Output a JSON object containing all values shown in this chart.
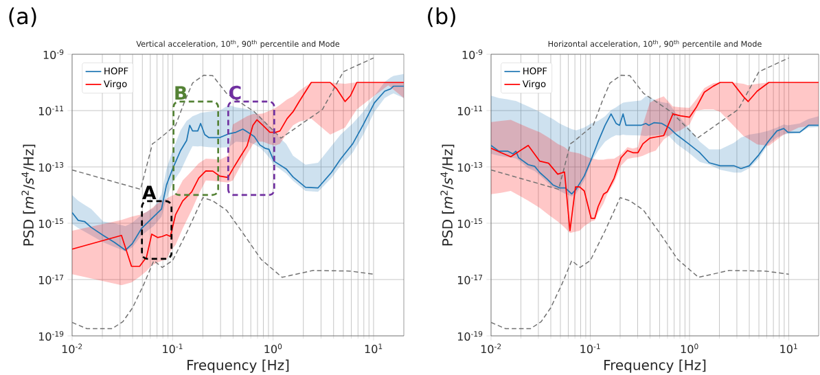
{
  "chart_data": [
    {
      "type": "line",
      "title": "Vertical acceleration, 10$^{th}$, 90$^{th}$ percentile and Mode",
      "xlabel": "Frequency [Hz]",
      "ylabel": "PSD [*m*$^{2}$/*s*$^{4}$/Hz]",
      "log": "xy",
      "grid": true,
      "legend": "top left",
      "xlim": [
        0.01,
        20
      ],
      "ylim": [
        1e-19,
        1e-09
      ],
      "xticks": [
        {
          "value": 0.01,
          "label": "10$^{-2}$"
        },
        {
          "value": 0.1,
          "label": "10$^{-1}$"
        },
        {
          "value": 1,
          "label": "10$^{0}$"
        },
        {
          "value": 10,
          "label": "10$^{1}$"
        }
      ],
      "yticks": [
        {
          "value": 1e-19,
          "label": "10$^{-19}$"
        },
        {
          "value": 1e-17,
          "label": "10$^{-17}$"
        },
        {
          "value": 1e-15,
          "label": "10$^{-15}$"
        },
        {
          "value": 1e-13,
          "label": "10$^{-13}$"
        },
        {
          "value": 1e-11,
          "label": "10$^{-11}$"
        },
        {
          "value": 1e-09,
          "label": "10$^{-9}$"
        }
      ],
      "annotations": [
        "(a)",
        "A",
        "B",
        "C"
      ],
      "series": [
        {
          "name": "HOPF",
          "color": "#1f77b4",
          "x": [
            0.01,
            0.0115,
            0.0133,
            0.0155,
            0.0204,
            0.0263,
            0.0339,
            0.0398,
            0.049,
            0.0646,
            0.0776,
            0.087,
            0.1,
            0.12,
            0.138,
            0.148,
            0.158,
            0.178,
            0.19,
            0.209,
            0.229,
            0.295,
            0.363,
            0.427,
            0.5,
            0.56,
            0.65,
            0.74,
            0.83,
            0.91,
            1.02,
            1.35,
            1.58,
            2.1,
            2.8,
            3.8,
            4.7,
            6.2,
            7.9,
            10.2,
            12.9,
            14.8,
            15.8,
            20
          ],
          "values": [
            2.4e-15,
            1.26e-15,
            1.15e-15,
            7.1e-16,
            3.7e-16,
            2.1e-16,
            1.1e-16,
            1.9e-16,
            6.5e-16,
            1.7e-15,
            3.2e-15,
            2.3e-14,
            8.5e-14,
            3.8e-13,
            8.7e-13,
            3e-12,
            1.9e-12,
            1.9e-12,
            3.5e-12,
            1.4e-12,
            1.1e-12,
            1.1e-12,
            1.5e-12,
            1.7e-12,
            2.2e-12,
            1.7e-12,
            1.2e-12,
            6e-13,
            4.6e-13,
            4.2e-13,
            1.6e-13,
            8.5e-14,
            4.4e-14,
            1.9e-14,
            1.8e-14,
            6.3e-14,
            1.9e-13,
            6.6e-13,
            3.2e-12,
            1.9e-11,
            4.9e-11,
            5.9e-11,
            7.4e-11,
            7.4e-11
          ],
          "lower": [
            9.5e-16,
            6.8e-16,
            5e-16,
            3.7e-16,
            2.1e-16,
            1.45e-16,
            1e-16,
            1.4e-16,
            3.7e-16,
            7.9e-16,
            1.7e-15,
            7.4e-15,
            2.8e-14,
            7.1e-14,
            2.1e-13,
            3.5e-13,
            5.5e-13,
            5.3e-13,
            5.5e-13,
            5.2e-13,
            5e-13,
            4.8e-13,
            5e-13,
            7.9e-13,
            7.6e-13,
            7.9e-13,
            6.3e-13,
            4.8e-13,
            3.2e-13,
            2.2e-13,
            1.2e-13,
            5.8e-14,
            3.2e-14,
            1.4e-14,
            1.3e-14,
            4e-14,
            1.1e-13,
            3.2e-13,
            1.4e-12,
            9.1e-12,
            2.8e-11,
            3.7e-11,
            4.1e-11,
            2.8e-11
          ],
          "upper": [
            1e-14,
            6.3e-15,
            4.5e-15,
            3.2e-15,
            1.15e-15,
            1e-15,
            7.9e-16,
            1.05e-15,
            2e-15,
            3.5e-15,
            1.07e-14,
            8.5e-14,
            3.8e-13,
            2e-12,
            4.3e-12,
            5.2e-12,
            6.3e-12,
            7.4e-12,
            8.3e-12,
            8.7e-12,
            9.1e-12,
            1e-11,
            1.6e-11,
            1.3e-11,
            1.2e-11,
            1.1e-11,
            8.9e-12,
            6.6e-12,
            4e-12,
            2.8e-12,
            1.7e-12,
            6.6e-13,
            2.5e-13,
            1.2e-13,
            1.4e-13,
            5.5e-13,
            1.4e-12,
            3.5e-12,
            9.1e-12,
            3.4e-11,
            1.05e-10,
            1.5e-10,
            1.7e-10,
            2e-10
          ]
        },
        {
          "name": "Virgo",
          "color": "#ff0000",
          "x": [
            0.01,
            0.031,
            0.039,
            0.047,
            0.055,
            0.062,
            0.071,
            0.079,
            0.087,
            0.095,
            0.107,
            0.126,
            0.155,
            0.182,
            0.214,
            0.251,
            0.295,
            0.355,
            0.398,
            0.468,
            0.55,
            0.63,
            0.69,
            0.79,
            0.93,
            1.06,
            1.17,
            1.38,
            1.58,
            1.82,
            2.4,
            3.7,
            4.3,
            5.2,
            5.9,
            6.8,
            10,
            14,
            20
          ],
          "values": [
            1.2e-16,
            3.7e-16,
            2.95e-17,
            2.95e-17,
            6.3e-17,
            4.1e-16,
            3.1e-16,
            3.4e-16,
            3.9e-16,
            3.4e-16,
            2e-15,
            6.2e-15,
            1.3e-14,
            4e-14,
            7.2e-14,
            7.1e-14,
            4.7e-14,
            4.2e-14,
            8.5e-14,
            2.2e-13,
            5.5e-13,
            3e-12,
            4.7e-12,
            3e-12,
            1.7e-12,
            1.7e-12,
            1.9e-12,
            5.2e-12,
            9.1e-12,
            2.1e-11,
            1e-10,
            1e-10,
            5.9e-11,
            2.1e-11,
            3.4e-11,
            1e-10,
            1e-10,
            1e-10,
            1e-10
          ],
          "lower": [
            1.55e-17,
            6.3e-18,
            7.9e-18,
            1.26e-17,
            2e-17,
            3.2e-17,
            4e-17,
            4.7e-17,
            5.2e-17,
            1e-16,
            1.7e-16,
            6.5e-16,
            2.9e-15,
            1.07e-14,
            3.3e-14,
            3.2e-14,
            3e-14,
            2.8e-14,
            3.3e-14,
            1e-13,
            2.8e-13,
            6.3e-13,
            7.9e-13,
            7.9e-13,
            6.3e-13,
            5.8e-13,
            6.6e-13,
            1.6e-12,
            3e-12,
            4e-12,
            5.2e-12,
            1.4e-12,
            1.8e-12,
            2.5e-12,
            5e-12,
            1.1e-11,
            3.2e-11,
            7.9e-11,
            2.8e-11
          ],
          "upper": [
            5.4e-16,
            1.3e-15,
            1.7e-15,
            2e-15,
            2.5e-15,
            3.4e-15,
            5e-15,
            6.3e-15,
            7.4e-15,
            8.9e-15,
            1.07e-14,
            3.3e-14,
            7.1e-14,
            1.35e-13,
            1.95e-13,
            1.9e-13,
            1.8e-13,
            2.5e-13,
            3.2e-12,
            4.5e-12,
            6.3e-12,
            7.6e-12,
            7.6e-12,
            7.9e-12,
            1e-11,
            1.26e-11,
            1.6e-11,
            2.5e-11,
            3.2e-11,
            5e-11,
            1e-10,
            1e-10,
            9.5e-11,
            8.9e-11,
            9.5e-11,
            1e-10,
            9.7e-11,
            1e-10,
            1e-10
          ]
        },
        {
          "color": "#707070",
          "line_style": "dashed",
          "x": [
            0.01,
            0.048,
            0.063,
            0.068,
            0.107,
            0.133,
            0.158,
            0.204,
            0.25,
            0.344,
            0.65,
            1.2,
            3.1,
            5,
            10
          ],
          "values": [
            7.8e-14,
            1.6e-14,
            6.6e-13,
            7.9e-13,
            3e-12,
            2.3e-11,
            9.5e-11,
            1.8e-10,
            1.75e-10,
            4.1e-11,
            9.1e-12,
            1.05e-12,
            1.1e-11,
            2.4e-10,
            7.4e-10
          ]
        },
        {
          "color": "#707070",
          "line_style": "dashed",
          "x": [
            0.01,
            0.014,
            0.025,
            0.032,
            0.04,
            0.052,
            0.065,
            0.079,
            0.1,
            0.141,
            0.2,
            0.25,
            0.344,
            0.52,
            0.76,
            1.23,
            2.5,
            5.8,
            10
          ],
          "values": [
            3e-19,
            1.8e-19,
            1.8e-19,
            3.2e-19,
            1e-18,
            7.1e-18,
            4.7e-17,
            2.7e-17,
            4.7e-17,
            5.4e-16,
            8.1e-15,
            6.3e-15,
            2.9e-15,
            3.7e-16,
            5.2e-17,
            1.2e-17,
            2.1e-17,
            2e-17,
            1.55e-17
          ]
        }
      ]
    },
    {
      "type": "line",
      "title": "Horizontal acceleration, 10$^{th}$, 90$^{th}$ percentile and Mode",
      "xlabel": "Frequency [Hz]",
      "ylabel": "PSD [*m*$^{2}$/*s*$^{4}$/Hz]",
      "log": "xy",
      "grid": true,
      "legend": "top left",
      "xlim": [
        0.01,
        20
      ],
      "ylim": [
        1e-19,
        1e-09
      ],
      "xticks": [
        {
          "value": 0.01,
          "label": "10$^{-2}$"
        },
        {
          "value": 0.1,
          "label": "10$^{-1}$"
        },
        {
          "value": 1,
          "label": "10$^{0}$"
        },
        {
          "value": 10,
          "label": "10$^{1}$"
        }
      ],
      "yticks": [
        {
          "value": 1e-19,
          "label": "10$^{-19}$"
        },
        {
          "value": 1e-17,
          "label": "10$^{-17}$"
        },
        {
          "value": 1e-15,
          "label": "10$^{-15}$"
        },
        {
          "value": 1e-13,
          "label": "10$^{-13}$"
        },
        {
          "value": 1e-11,
          "label": "10$^{-11}$"
        },
        {
          "value": 1e-09,
          "label": "10$^{-9}$"
        }
      ],
      "annotations": [
        "(b)"
      ],
      "series": [
        {
          "name": "HOPF",
          "color": "#1f77b4",
          "x": [
            0.01,
            0.012,
            0.0148,
            0.0166,
            0.0178,
            0.019,
            0.0237,
            0.0275,
            0.031,
            0.037,
            0.042,
            0.049,
            0.056,
            0.065,
            0.072,
            0.087,
            0.102,
            0.12,
            0.141,
            0.162,
            0.182,
            0.197,
            0.214,
            0.229,
            0.324,
            0.363,
            0.389,
            0.437,
            0.525,
            0.62,
            0.74,
            0.98,
            1.27,
            1.58,
            2.04,
            2.8,
            3.3,
            4,
            5,
            6.2,
            7.6,
            8.9,
            9.8,
            12.9,
            15.8,
            20
          ],
          "values": [
            5.8e-13,
            3.6e-13,
            3.6e-13,
            2.9e-13,
            3.6e-13,
            2.1e-13,
            1.2e-13,
            1.05e-13,
            6.3e-14,
            3.6e-14,
            2.3e-14,
            1.8e-14,
            1.8e-14,
            1.1e-14,
            1.6e-14,
            4.8e-14,
            1.8e-13,
            7.9e-13,
            3e-12,
            7.6e-12,
            3.5e-12,
            3e-12,
            7.6e-12,
            3e-12,
            3e-12,
            3.5e-12,
            3e-12,
            3.7e-12,
            3.5e-12,
            2.5e-12,
            1.4e-12,
            6.6e-13,
            3.2e-13,
            1.4e-13,
            1.1e-13,
            1.1e-13,
            8.7e-14,
            1.1e-13,
            2.7e-13,
            7.9e-13,
            1.9e-12,
            2.3e-12,
            1.7e-12,
            1.7e-12,
            3e-12,
            3e-12
          ],
          "lower": [
            2.9e-13,
            2.5e-13,
            2.2e-13,
            2.1e-13,
            2e-13,
            1.7e-13,
            8.9e-14,
            7.1e-14,
            5e-14,
            2.8e-14,
            1.8e-14,
            1.4e-14,
            1.1e-14,
            8.9e-15,
            1.1e-14,
            3.3e-14,
            1.5e-13,
            3.8e-13,
            7.9e-13,
            1.1e-12,
            1.35e-12,
            1.3e-12,
            1.4e-12,
            1.35e-12,
            1.3e-12,
            1.25e-12,
            1.3e-12,
            1.3e-12,
            1.4e-12,
            1.26e-12,
            6.6e-13,
            3.2e-13,
            1.5e-13,
            1.2e-13,
            7.9e-14,
            6.3e-14,
            6.3e-14,
            8.9e-14,
            2e-13,
            6.3e-13,
            1.1e-12,
            1.4e-12,
            1.5e-12,
            1.6e-12,
            2.5e-12,
            2.6e-12
          ],
          "upper": [
            3.4e-11,
            2.8e-11,
            2.5e-11,
            2.3e-11,
            2.2e-11,
            2e-11,
            1.4e-11,
            1.1e-11,
            8.9e-12,
            6.3e-12,
            5e-12,
            3.5e-12,
            2.8e-12,
            2.2e-12,
            2e-12,
            2.5e-12,
            3.5e-12,
            4.3e-12,
            6.3e-12,
            1.05e-11,
            1.3e-11,
            1.6e-11,
            1.9e-11,
            2e-11,
            2.3e-11,
            3.2e-11,
            3.2e-11,
            2.5e-11,
            2e-11,
            1.8e-11,
            7.6e-12,
            2.5e-12,
            7.9e-13,
            4.2e-13,
            4.2e-13,
            7.1e-13,
            1.1e-12,
            1.4e-12,
            1.6e-12,
            1.9e-12,
            2.5e-12,
            3.2e-12,
            3e-12,
            3.5e-12,
            5e-12,
            6.3e-12
          ]
        },
        {
          "name": "Virgo",
          "color": "#ff0000",
          "x": [
            0.01,
            0.0126,
            0.0158,
            0.0237,
            0.031,
            0.038,
            0.047,
            0.055,
            0.0624,
            0.071,
            0.078,
            0.087,
            0.102,
            0.111,
            0.12,
            0.136,
            0.148,
            0.174,
            0.204,
            0.237,
            0.269,
            0.302,
            0.339,
            0.398,
            0.457,
            0.55,
            0.62,
            0.68,
            0.81,
            1.0,
            1.17,
            1.41,
            1.74,
            2.04,
            2.7,
            3.5,
            3.9,
            4.8,
            6.3,
            8.9,
            12.6,
            20
          ],
          "values": [
            4.6e-13,
            3.2e-13,
            2.3e-13,
            5.8e-13,
            1.6e-13,
            1.35e-13,
            5.5e-14,
            6.6e-14,
            5.4e-16,
            1.95e-14,
            1.95e-14,
            1.4e-14,
            1.5e-15,
            1.5e-15,
            3.9e-15,
            1.07e-14,
            1.3e-14,
            4e-14,
            2.1e-13,
            3.8e-13,
            3.2e-13,
            3.2e-13,
            6.6e-13,
            1.05e-12,
            1.15e-12,
            1.3e-12,
            3.5e-12,
            7.6e-12,
            6.5e-12,
            5.8e-12,
            1.3e-11,
            4.5e-11,
            7.4e-11,
            1e-10,
            1e-10,
            3.1e-11,
            2.1e-11,
            4.9e-11,
            1e-10,
            1e-10,
            1e-10,
            1e-10
          ],
          "lower": [
            1.07e-14,
            1.2e-14,
            1.4e-14,
            6.3e-15,
            3.5e-15,
            2e-15,
            1.15e-15,
            7.1e-16,
            4.5e-16,
            5e-16,
            5.4e-16,
            7.9e-16,
            1.15e-15,
            1.26e-15,
            2.4e-15,
            5e-15,
            1.07e-14,
            2.8e-14,
            1.1e-13,
            1.9e-13,
            2.1e-13,
            2.2e-13,
            2.5e-13,
            3.2e-13,
            3.8e-13,
            9.5e-13,
            1.26e-12,
            1.6e-12,
            2e-12,
            3.2e-12,
            1e-11,
            1.1e-11,
            1.1e-11,
            8.9e-12,
            3.2e-12,
            1.26e-12,
            1e-12,
            6.3e-13,
            5.6e-13,
            1.4e-12,
            2.5e-12,
            3.2e-12
          ],
          "upper": [
            3.9e-12,
            4.3e-12,
            4.7e-12,
            2.5e-12,
            1.7e-12,
            1.1e-12,
            6.6e-13,
            5e-13,
            3.5e-13,
            3.2e-13,
            3e-13,
            2.5e-13,
            2e-13,
            1.9e-13,
            1.8e-13,
            1.8e-13,
            1.9e-13,
            1.95e-13,
            2.8e-13,
            5e-13,
            4.5e-13,
            5e-13,
            3.2e-12,
            1.9e-11,
            2.5e-11,
            3.2e-11,
            2e-11,
            1.4e-11,
            1.3e-11,
            1.26e-11,
            2.5e-11,
            6.3e-11,
            9.5e-11,
            1e-10,
            1e-10,
            8.9e-11,
            7.9e-11,
            8.9e-11,
            1e-10,
            9.6e-11,
            1e-10,
            1e-10
          ]
        },
        {
          "color": "#707070",
          "line_style": "dashed",
          "x": [
            0.01,
            0.048,
            0.063,
            0.068,
            0.107,
            0.133,
            0.158,
            0.204,
            0.25,
            0.344,
            0.65,
            1.2,
            3.1,
            5,
            10
          ],
          "values": [
            7.8e-14,
            1.6e-14,
            6.6e-13,
            7.9e-13,
            3e-12,
            2.3e-11,
            9.5e-11,
            1.8e-10,
            1.75e-10,
            4.1e-11,
            9.1e-12,
            1.05e-12,
            1.1e-11,
            2.4e-10,
            7.4e-10
          ]
        },
        {
          "color": "#707070",
          "line_style": "dashed",
          "x": [
            0.01,
            0.014,
            0.025,
            0.032,
            0.04,
            0.052,
            0.065,
            0.079,
            0.1,
            0.141,
            0.2,
            0.25,
            0.344,
            0.52,
            0.76,
            1.23,
            2.5,
            5.8,
            10
          ],
          "values": [
            3e-19,
            1.8e-19,
            1.8e-19,
            3.2e-19,
            1e-18,
            7.1e-18,
            4.7e-17,
            2.7e-17,
            4.7e-17,
            5.4e-16,
            8.1e-15,
            6.3e-15,
            2.9e-15,
            3.7e-16,
            5.2e-17,
            1.2e-17,
            2.1e-17,
            2e-17,
            1.55e-17
          ]
        }
      ]
    }
  ]
}
